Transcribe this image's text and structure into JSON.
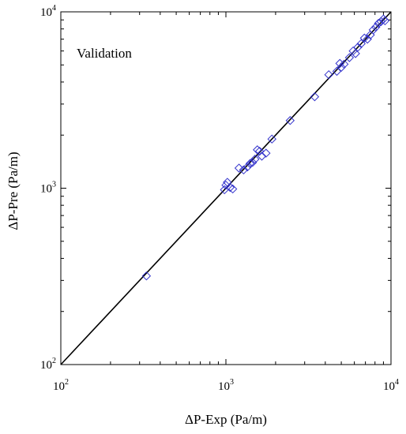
{
  "chart_data": {
    "type": "scatter",
    "title": "",
    "annotation": "Validation",
    "xlabel": "ΔP-Exp (Pa/m)",
    "ylabel": "ΔP-Pre (Pa/m)",
    "xscale": "log",
    "yscale": "log",
    "xlim": [
      100,
      10000
    ],
    "ylim": [
      100,
      10000
    ],
    "grid": false,
    "legend": "none",
    "x_ticks": [
      {
        "base": "10",
        "exp": "2"
      },
      {
        "base": "10",
        "exp": "3"
      },
      {
        "base": "10",
        "exp": "4"
      }
    ],
    "y_ticks": [
      {
        "base": "10",
        "exp": "2"
      },
      {
        "base": "10",
        "exp": "3"
      },
      {
        "base": "10",
        "exp": "4"
      }
    ],
    "reference_line": {
      "x": [
        100,
        10000
      ],
      "y": [
        100,
        10000
      ],
      "color": "#000000"
    },
    "marker": {
      "shape": "diamond",
      "color": "#3333cc",
      "fill": "none"
    },
    "points": [
      {
        "x": 330,
        "y": 318
      },
      {
        "x": 980,
        "y": 980
      },
      {
        "x": 1000,
        "y": 1040
      },
      {
        "x": 1020,
        "y": 1080
      },
      {
        "x": 1060,
        "y": 1010
      },
      {
        "x": 1100,
        "y": 990
      },
      {
        "x": 1200,
        "y": 1300
      },
      {
        "x": 1280,
        "y": 1270
      },
      {
        "x": 1350,
        "y": 1320
      },
      {
        "x": 1400,
        "y": 1380
      },
      {
        "x": 1450,
        "y": 1400
      },
      {
        "x": 1500,
        "y": 1460
      },
      {
        "x": 1550,
        "y": 1650
      },
      {
        "x": 1600,
        "y": 1620
      },
      {
        "x": 1650,
        "y": 1520
      },
      {
        "x": 1750,
        "y": 1580
      },
      {
        "x": 1900,
        "y": 1900
      },
      {
        "x": 2450,
        "y": 2420
      },
      {
        "x": 3450,
        "y": 3300
      },
      {
        "x": 4200,
        "y": 4400
      },
      {
        "x": 4700,
        "y": 4600
      },
      {
        "x": 4900,
        "y": 5100
      },
      {
        "x": 5000,
        "y": 4850
      },
      {
        "x": 5200,
        "y": 5050
      },
      {
        "x": 5600,
        "y": 5500
      },
      {
        "x": 5900,
        "y": 6000
      },
      {
        "x": 6100,
        "y": 5800
      },
      {
        "x": 6300,
        "y": 6300
      },
      {
        "x": 6600,
        "y": 6600
      },
      {
        "x": 6900,
        "y": 7100
      },
      {
        "x": 7200,
        "y": 7000
      },
      {
        "x": 7500,
        "y": 7400
      },
      {
        "x": 7800,
        "y": 7900
      },
      {
        "x": 8100,
        "y": 8200
      },
      {
        "x": 8400,
        "y": 8600
      },
      {
        "x": 8700,
        "y": 8800
      },
      {
        "x": 9000,
        "y": 9100
      },
      {
        "x": 9200,
        "y": 8900
      }
    ]
  }
}
